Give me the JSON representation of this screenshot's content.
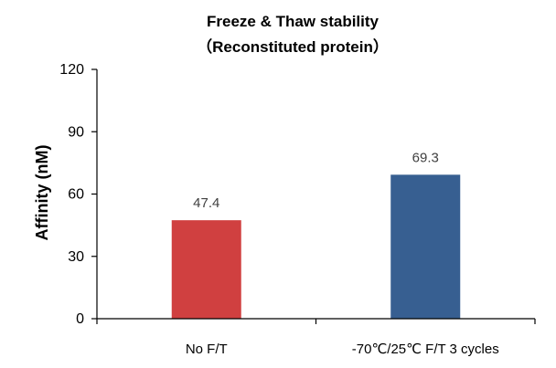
{
  "chart_data": {
    "type": "bar",
    "title": "Freeze & Thaw stability",
    "subtitle": "（Reconstituted protein）",
    "xlabel": "",
    "ylabel": "Affinity (nM)",
    "categories": [
      "No F/T",
      "-70℃/25℃ F/T 3 cycles"
    ],
    "values": [
      47.4,
      69.3
    ],
    "data_labels": [
      "47.4",
      "69.3"
    ],
    "ylim": [
      0,
      120
    ],
    "yticks": [
      0,
      30,
      60,
      90,
      120
    ],
    "ytick_labels": [
      "0",
      "30",
      "60",
      "90",
      "120"
    ],
    "colors": [
      "#d04040",
      "#375f91"
    ],
    "grid": false,
    "legend": "none"
  }
}
